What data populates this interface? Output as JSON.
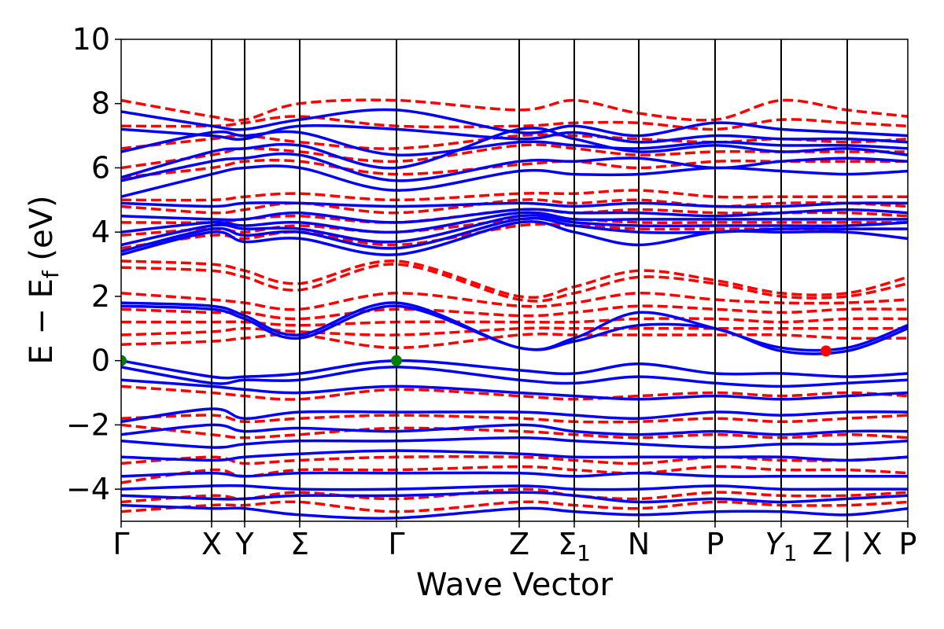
{
  "chart_data": {
    "type": "line",
    "title": "",
    "xlabel": "Wave Vector",
    "ylabel_main": "E − E",
    "ylabel_sub": "f",
    "ylabel_unit": " (eV)",
    "ylim": [
      -5,
      10
    ],
    "yticks": [
      -4,
      -2,
      0,
      2,
      4,
      6,
      8,
      10
    ],
    "ytick_labels": [
      "−4",
      "−2",
      "0",
      "2",
      "4",
      "6",
      "8",
      "10"
    ],
    "xlim": [
      0,
      1
    ],
    "high_symmetry_points": [
      {
        "label": "Γ",
        "sub": "",
        "italic": false,
        "x": 0.0
      },
      {
        "label": "X",
        "sub": "",
        "italic": false,
        "x": 0.115
      },
      {
        "label": "Y",
        "sub": "",
        "italic": false,
        "x": 0.157
      },
      {
        "label": "Σ",
        "sub": "",
        "italic": false,
        "x": 0.227
      },
      {
        "label": "Γ",
        "sub": "",
        "italic": false,
        "x": 0.35
      },
      {
        "label": "Z",
        "sub": "",
        "italic": false,
        "x": 0.506
      },
      {
        "label": "Σ",
        "sub": "1",
        "italic": false,
        "x": 0.576
      },
      {
        "label": "N",
        "sub": "",
        "italic": false,
        "x": 0.658
      },
      {
        "label": "P",
        "sub": "",
        "italic": false,
        "x": 0.755
      },
      {
        "label": "Y",
        "sub": "1",
        "italic": true,
        "x": 0.839
      },
      {
        "label": "Z | X",
        "sub": "",
        "italic": false,
        "x": 0.923
      },
      {
        "label": "P",
        "sub": "",
        "italic": false,
        "x": 1.0
      }
    ],
    "grid": false,
    "colors": {
      "spin_up": "#0000ff",
      "spin_down": "#ff0000",
      "vbm_marker": "#008000",
      "cbm_marker": "#ff0000"
    },
    "series": [
      {
        "style": "solid",
        "values": [
          [
            7.75,
            7.3,
            7.2,
            7.5,
            7.8,
            7.1,
            7.3,
            7.0,
            7.4,
            7.2,
            7.1,
            7.0
          ],
          [
            7.2,
            7.0,
            6.9,
            7.3,
            7.2,
            6.9,
            7.1,
            6.8,
            7.0,
            6.9,
            6.9,
            6.8
          ],
          [
            6.5,
            7.1,
            7.0,
            7.1,
            6.4,
            6.8,
            6.7,
            6.6,
            6.8,
            6.7,
            6.7,
            6.6
          ],
          [
            5.7,
            6.5,
            6.6,
            6.7,
            6.0,
            7.2,
            6.9,
            6.5,
            6.7,
            6.5,
            6.6,
            6.4
          ],
          [
            5.6,
            6.2,
            6.3,
            6.4,
            5.6,
            6.2,
            6.2,
            6.3,
            6.0,
            6.2,
            6.3,
            6.2
          ],
          [
            5.1,
            5.8,
            6.0,
            6.0,
            5.3,
            5.9,
            5.8,
            5.8,
            6.0,
            5.9,
            5.8,
            5.9
          ],
          [
            4.9,
            4.8,
            4.9,
            4.9,
            4.8,
            4.9,
            4.8,
            4.9,
            4.8,
            4.8,
            4.9,
            4.9
          ],
          [
            4.5,
            4.4,
            4.4,
            4.6,
            4.3,
            4.7,
            4.6,
            4.6,
            4.5,
            4.6,
            4.7,
            4.6
          ],
          [
            4.0,
            4.3,
            4.2,
            4.3,
            4.0,
            4.6,
            4.4,
            4.4,
            4.4,
            4.4,
            4.4,
            4.4
          ],
          [
            3.6,
            4.2,
            4.1,
            4.1,
            3.7,
            4.5,
            4.3,
            4.2,
            4.2,
            4.2,
            4.2,
            4.3
          ],
          [
            3.4,
            4.1,
            3.9,
            4.0,
            3.5,
            4.4,
            4.2,
            4.0,
            4.0,
            4.1,
            4.1,
            4.1
          ],
          [
            3.3,
            4.0,
            3.7,
            3.8,
            3.3,
            4.3,
            4.0,
            3.6,
            4.0,
            4.0,
            4.0,
            3.8
          ],
          [
            1.8,
            1.7,
            1.4,
            0.8,
            1.8,
            0.4,
            0.7,
            1.5,
            1.0,
            0.4,
            0.4,
            1.1
          ],
          [
            1.7,
            1.6,
            1.3,
            0.7,
            1.7,
            0.4,
            0.6,
            1.1,
            1.0,
            0.3,
            0.3,
            1.0
          ],
          [
            0.0,
            -0.5,
            -0.5,
            -0.4,
            0.0,
            -0.3,
            -0.4,
            -0.1,
            -0.4,
            -0.4,
            -0.5,
            -0.4
          ],
          [
            -0.2,
            -0.7,
            -0.6,
            -0.6,
            -0.2,
            -0.6,
            -0.7,
            -0.5,
            -0.7,
            -0.8,
            -0.7,
            -0.6
          ],
          [
            -0.6,
            -0.8,
            -0.9,
            -1.0,
            -0.8,
            -1.0,
            -1.1,
            -1.2,
            -1.1,
            -1.2,
            -1.1,
            -1.0
          ],
          [
            -1.9,
            -1.5,
            -1.8,
            -1.6,
            -1.6,
            -1.6,
            -1.7,
            -1.8,
            -1.6,
            -1.7,
            -1.6,
            -1.6
          ],
          [
            -2.3,
            -2.0,
            -2.2,
            -2.1,
            -2.2,
            -2.0,
            -2.2,
            -2.3,
            -2.2,
            -2.3,
            -2.2,
            -2.2
          ],
          [
            -2.5,
            -2.7,
            -2.6,
            -2.5,
            -2.5,
            -2.4,
            -2.5,
            -2.6,
            -2.7,
            -2.6,
            -2.6,
            -2.5
          ],
          [
            -3.0,
            -3.1,
            -3.0,
            -2.9,
            -2.8,
            -2.9,
            -3.0,
            -3.0,
            -3.0,
            -3.0,
            -3.1,
            -3.0
          ],
          [
            -3.6,
            -3.5,
            -3.6,
            -3.5,
            -3.5,
            -3.5,
            -3.6,
            -3.5,
            -3.6,
            -3.6,
            -3.6,
            -3.6
          ],
          [
            -4.0,
            -3.9,
            -3.9,
            -4.0,
            -4.0,
            -3.9,
            -4.0,
            -4.0,
            -3.9,
            -4.0,
            -4.0,
            -4.0
          ],
          [
            -4.2,
            -4.3,
            -4.3,
            -4.2,
            -4.2,
            -4.1,
            -4.2,
            -4.4,
            -4.3,
            -4.4,
            -4.3,
            -4.2
          ],
          [
            -4.5,
            -4.6,
            -4.6,
            -4.8,
            -4.9,
            -4.6,
            -4.7,
            -4.8,
            -4.7,
            -4.7,
            -4.8,
            -4.6
          ]
        ]
      },
      {
        "style": "dashed",
        "values": [
          [
            8.1,
            7.6,
            7.5,
            8.0,
            8.1,
            7.8,
            8.1,
            7.7,
            7.5,
            8.1,
            7.8,
            7.6
          ],
          [
            7.3,
            7.3,
            7.4,
            7.6,
            7.3,
            7.3,
            7.4,
            7.4,
            7.2,
            7.5,
            7.4,
            7.3
          ],
          [
            6.6,
            6.9,
            7.0,
            6.8,
            6.6,
            7.0,
            7.0,
            6.9,
            6.8,
            6.9,
            6.8,
            6.9
          ],
          [
            6.0,
            6.4,
            6.6,
            6.5,
            6.2,
            6.7,
            6.6,
            6.4,
            6.5,
            6.5,
            6.5,
            6.5
          ],
          [
            5.7,
            6.0,
            6.2,
            6.2,
            5.8,
            6.1,
            6.2,
            6.0,
            6.2,
            6.2,
            6.2,
            6.2
          ],
          [
            5.0,
            5.0,
            5.1,
            5.2,
            5.0,
            5.2,
            5.2,
            5.3,
            5.1,
            5.1,
            5.1,
            5.1
          ],
          [
            4.8,
            4.6,
            4.7,
            4.9,
            4.6,
            5.0,
            4.9,
            5.0,
            4.8,
            4.9,
            4.9,
            4.8
          ],
          [
            4.3,
            4.3,
            4.4,
            4.5,
            4.3,
            4.7,
            4.6,
            4.7,
            4.6,
            4.6,
            4.6,
            4.5
          ],
          [
            3.9,
            4.1,
            4.0,
            4.2,
            4.0,
            4.4,
            4.4,
            4.3,
            4.3,
            4.3,
            4.3,
            4.3
          ],
          [
            3.5,
            3.9,
            3.8,
            4.0,
            3.6,
            4.2,
            4.2,
            4.1,
            4.1,
            4.1,
            4.1,
            4.1
          ],
          [
            3.1,
            3.0,
            2.8,
            2.4,
            3.1,
            2.0,
            2.3,
            2.8,
            2.5,
            2.1,
            2.1,
            2.6
          ],
          [
            2.9,
            2.8,
            2.6,
            2.2,
            3.0,
            1.9,
            2.1,
            2.6,
            2.4,
            2.0,
            2.0,
            2.4
          ],
          [
            2.1,
            1.9,
            1.8,
            1.6,
            2.1,
            1.7,
            1.8,
            2.1,
            1.9,
            1.8,
            1.8,
            1.9
          ],
          [
            1.6,
            1.5,
            1.5,
            1.3,
            1.6,
            1.4,
            1.5,
            1.7,
            1.6,
            1.5,
            1.6,
            1.6
          ],
          [
            1.2,
            1.2,
            1.2,
            1.1,
            1.2,
            1.2,
            1.2,
            1.3,
            1.3,
            1.2,
            1.3,
            1.3
          ],
          [
            0.8,
            0.9,
            1.0,
            0.9,
            0.8,
            1.0,
            1.0,
            1.0,
            1.0,
            1.0,
            1.0,
            1.0
          ],
          [
            0.5,
            0.6,
            0.7,
            0.8,
            0.4,
            0.8,
            0.8,
            0.8,
            0.8,
            0.8,
            0.7,
            0.7
          ],
          [
            -0.8,
            -1.0,
            -1.1,
            -1.2,
            -0.9,
            -1.1,
            -1.2,
            -1.1,
            -1.0,
            -1.1,
            -1.0,
            -1.1
          ],
          [
            -1.8,
            -1.7,
            -1.9,
            -1.8,
            -1.7,
            -1.8,
            -1.9,
            -1.9,
            -1.8,
            -1.9,
            -1.8,
            -1.7
          ],
          [
            -2.0,
            -2.3,
            -2.4,
            -2.3,
            -2.1,
            -2.2,
            -2.3,
            -2.4,
            -2.3,
            -2.4,
            -2.3,
            -2.4
          ],
          [
            -3.2,
            -3.0,
            -3.2,
            -3.1,
            -3.0,
            -3.0,
            -3.1,
            -3.2,
            -3.0,
            -3.1,
            -3.1,
            -3.0
          ],
          [
            -3.8,
            -3.4,
            -3.6,
            -3.4,
            -3.4,
            -3.3,
            -3.4,
            -3.5,
            -3.3,
            -3.4,
            -3.4,
            -3.5
          ],
          [
            -4.4,
            -4.2,
            -4.3,
            -4.1,
            -4.3,
            -4.0,
            -4.2,
            -4.3,
            -4.1,
            -4.2,
            -4.2,
            -4.1
          ],
          [
            -4.7,
            -4.5,
            -4.5,
            -4.4,
            -4.7,
            -4.4,
            -4.5,
            -4.6,
            -4.4,
            -4.5,
            -4.5,
            -4.4
          ]
        ]
      }
    ],
    "markers": [
      {
        "x": 0.0,
        "y": 0.0,
        "color": "#008000"
      },
      {
        "x": 0.35,
        "y": 0.0,
        "color": "#008000"
      },
      {
        "x": 0.896,
        "y": 0.3,
        "color": "#ff0000"
      }
    ]
  }
}
